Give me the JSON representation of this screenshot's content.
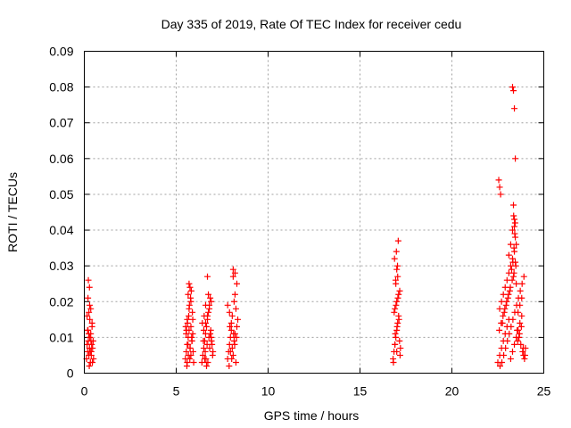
{
  "chart_data": {
    "type": "scatter",
    "title": "Day 335 of 2019, Rate Of TEC Index for receiver cedu",
    "xlabel": "GPS time / hours",
    "ylabel": "ROTI / TECUs",
    "xlim": [
      0,
      25
    ],
    "ylim": [
      0,
      0.09
    ],
    "x_ticks": [
      0,
      5,
      10,
      15,
      20,
      25
    ],
    "x_tick_labels": [
      "0",
      "5",
      "10",
      "15",
      "20",
      "25"
    ],
    "y_ticks": [
      0,
      0.01,
      0.02,
      0.03,
      0.04,
      0.05,
      0.06,
      0.07,
      0.08,
      0.09
    ],
    "y_tick_labels": [
      "0",
      "0.01",
      "0.02",
      "0.03",
      "0.04",
      "0.05",
      "0.06",
      "0.07",
      "0.08",
      "0.09"
    ],
    "grid": true,
    "marker": "plus",
    "marker_color": "#ff0000",
    "series": [
      {
        "name": "ROTI",
        "x": [
          0.12,
          0.15,
          0.18,
          0.2,
          0.22,
          0.25,
          0.28,
          0.3,
          0.32,
          0.35,
          0.38,
          0.4,
          0.42,
          0.45,
          0.48,
          0.5,
          0.15,
          0.22,
          0.28,
          0.35,
          0.42,
          0.2,
          0.3,
          0.25,
          0.33,
          0.27,
          0.29,
          0.18,
          0.38,
          0.44,
          0.24,
          0.36,
          5.5,
          5.55,
          5.6,
          5.65,
          5.7,
          5.75,
          5.8,
          5.85,
          5.9,
          5.95,
          5.6,
          5.7,
          5.8,
          5.65,
          5.75,
          5.52,
          5.58,
          5.62,
          5.68,
          5.72,
          5.78,
          5.82,
          5.88,
          5.92,
          5.64,
          5.74,
          5.84,
          5.56,
          5.66,
          5.76,
          5.86,
          5.54,
          5.7,
          5.6,
          5.8,
          5.9,
          6.4,
          6.45,
          6.5,
          6.55,
          6.6,
          6.65,
          6.7,
          6.75,
          6.8,
          6.85,
          6.9,
          6.95,
          7.0,
          6.5,
          6.6,
          6.7,
          6.8,
          6.9,
          6.7,
          6.75,
          6.55,
          6.65,
          6.85,
          6.48,
          6.58,
          6.68,
          6.78,
          6.88,
          6.98,
          6.42,
          6.62,
          6.72,
          6.82,
          6.92,
          6.52,
          6.6,
          7.8,
          7.85,
          7.9,
          7.95,
          8.0,
          8.05,
          8.1,
          8.15,
          8.2,
          8.25,
          8.3,
          8.35,
          7.9,
          8.0,
          8.1,
          8.2,
          8.3,
          8.1,
          8.2,
          7.8,
          8.05,
          8.15,
          8.25,
          7.95,
          7.88,
          8.02,
          8.18,
          8.28,
          7.92,
          8.12,
          16.8,
          16.85,
          16.9,
          16.95,
          17.0,
          17.05,
          17.1,
          17.15,
          17.2,
          16.9,
          17.0,
          17.1,
          16.95,
          17.05,
          17.0,
          16.88,
          16.98,
          17.08,
          17.18,
          16.82,
          16.92,
          17.02,
          17.12,
          16.86,
          16.96,
          17.06,
          17.16,
          16.94,
          17.04,
          16.9,
          17.0,
          22.5,
          22.6,
          22.7,
          22.8,
          22.9,
          23.0,
          23.1,
          23.2,
          23.3,
          23.4,
          23.5,
          23.6,
          23.7,
          23.8,
          23.9,
          24.0,
          22.6,
          22.7,
          22.8,
          22.9,
          23.0,
          23.1,
          23.2,
          23.3,
          23.4,
          23.5,
          23.6,
          23.7,
          23.8,
          22.55,
          22.6,
          22.65,
          23.3,
          23.35,
          23.4,
          23.45,
          23.35,
          23.4,
          23.4,
          23.45,
          23.3,
          23.2,
          23.1,
          23.25,
          23.35,
          23.5,
          23.45,
          23.15,
          23.05,
          22.95,
          22.85,
          22.75,
          23.55,
          23.65,
          23.75,
          23.85,
          23.95,
          22.62,
          22.72,
          22.82,
          22.92,
          23.02,
          23.12,
          23.22,
          23.32,
          23.42,
          23.52,
          23.62,
          23.72,
          23.82,
          23.92,
          22.58,
          22.68,
          22.78,
          22.88,
          22.98,
          23.08,
          23.18,
          23.28,
          23.38,
          23.48,
          23.58,
          23.68,
          23.78,
          23.88,
          23.98,
          23.38,
          23.42,
          23.36,
          23.44,
          23.32
        ],
        "y": [
          0.004,
          0.008,
          0.006,
          0.012,
          0.009,
          0.005,
          0.007,
          0.01,
          0.006,
          0.011,
          0.005,
          0.008,
          0.014,
          0.007,
          0.009,
          0.004,
          0.016,
          0.026,
          0.024,
          0.018,
          0.013,
          0.021,
          0.015,
          0.017,
          0.003,
          0.002,
          0.019,
          0.012,
          0.006,
          0.003,
          0.011,
          0.009,
          0.004,
          0.006,
          0.008,
          0.01,
          0.012,
          0.007,
          0.005,
          0.009,
          0.011,
          0.003,
          0.015,
          0.018,
          0.02,
          0.022,
          0.024,
          0.013,
          0.002,
          0.014,
          0.016,
          0.019,
          0.021,
          0.023,
          0.017,
          0.006,
          0.008,
          0.004,
          0.01,
          0.012,
          0.005,
          0.007,
          0.009,
          0.011,
          0.025,
          0.003,
          0.013,
          0.015,
          0.003,
          0.005,
          0.007,
          0.009,
          0.011,
          0.013,
          0.015,
          0.017,
          0.019,
          0.021,
          0.01,
          0.008,
          0.006,
          0.012,
          0.014,
          0.016,
          0.018,
          0.02,
          0.027,
          0.022,
          0.004,
          0.002,
          0.011,
          0.009,
          0.006,
          0.008,
          0.01,
          0.012,
          0.005,
          0.014,
          0.004,
          0.003,
          0.007,
          0.009,
          0.016,
          0.019,
          0.004,
          0.006,
          0.008,
          0.01,
          0.012,
          0.007,
          0.005,
          0.009,
          0.011,
          0.003,
          0.013,
          0.015,
          0.017,
          0.014,
          0.029,
          0.028,
          0.025,
          0.027,
          0.022,
          0.019,
          0.016,
          0.02,
          0.018,
          0.006,
          0.002,
          0.004,
          0.008,
          0.01,
          0.013,
          0.011,
          0.004,
          0.006,
          0.008,
          0.01,
          0.012,
          0.014,
          0.016,
          0.009,
          0.007,
          0.018,
          0.02,
          0.022,
          0.025,
          0.027,
          0.029,
          0.032,
          0.034,
          0.037,
          0.005,
          0.003,
          0.011,
          0.013,
          0.015,
          0.017,
          0.019,
          0.021,
          0.023,
          0.026,
          0.03,
          0.008,
          0.006,
          0.003,
          0.005,
          0.007,
          0.009,
          0.011,
          0.013,
          0.015,
          0.004,
          0.006,
          0.008,
          0.01,
          0.012,
          0.014,
          0.016,
          0.005,
          0.007,
          0.018,
          0.02,
          0.022,
          0.024,
          0.026,
          0.028,
          0.03,
          0.032,
          0.034,
          0.036,
          0.017,
          0.019,
          0.021,
          0.054,
          0.052,
          0.05,
          0.08,
          0.079,
          0.074,
          0.06,
          0.047,
          0.043,
          0.041,
          0.038,
          0.04,
          0.036,
          0.033,
          0.029,
          0.027,
          0.025,
          0.031,
          0.023,
          0.021,
          0.019,
          0.017,
          0.014,
          0.012,
          0.01,
          0.008,
          0.006,
          0.004,
          0.002,
          0.003,
          0.005,
          0.007,
          0.009,
          0.011,
          0.013,
          0.015,
          0.017,
          0.019,
          0.021,
          0.023,
          0.025,
          0.027,
          0.012,
          0.014,
          0.016,
          0.018,
          0.02,
          0.022,
          0.024,
          0.026,
          0.028,
          0.03,
          0.009,
          0.011,
          0.013,
          0.007,
          0.005,
          0.035,
          0.039,
          0.044,
          0.042,
          0.031
        ]
      }
    ]
  }
}
